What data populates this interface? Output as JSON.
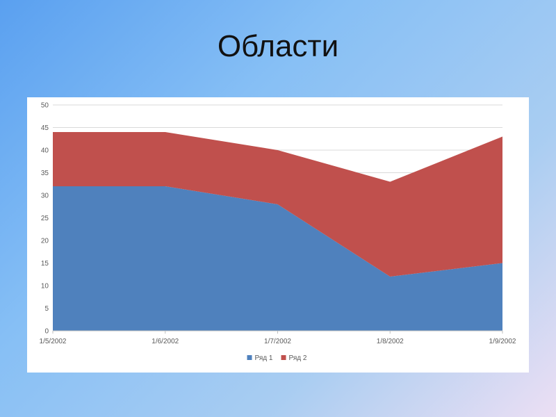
{
  "slide": {
    "title": "Области"
  },
  "chart_data": {
    "type": "area",
    "stacked": true,
    "x": [
      "1/5/2002",
      "1/6/2002",
      "1/7/2002",
      "1/8/2002",
      "1/9/2002"
    ],
    "series": [
      {
        "name": "Ряд 1",
        "values": [
          32,
          32,
          28,
          12,
          15
        ],
        "color": "#4f81bd"
      },
      {
        "name": "Ряд 2",
        "values": [
          12,
          12,
          12,
          21,
          28
        ],
        "color": "#c0504d"
      }
    ],
    "title": "",
    "xlabel": "",
    "ylabel": "",
    "ylim": [
      0,
      50
    ],
    "yticks": [
      "0",
      "5",
      "10",
      "15",
      "20",
      "25",
      "30",
      "35",
      "40",
      "45",
      "50"
    ],
    "grid": true,
    "legend_position": "bottom"
  }
}
